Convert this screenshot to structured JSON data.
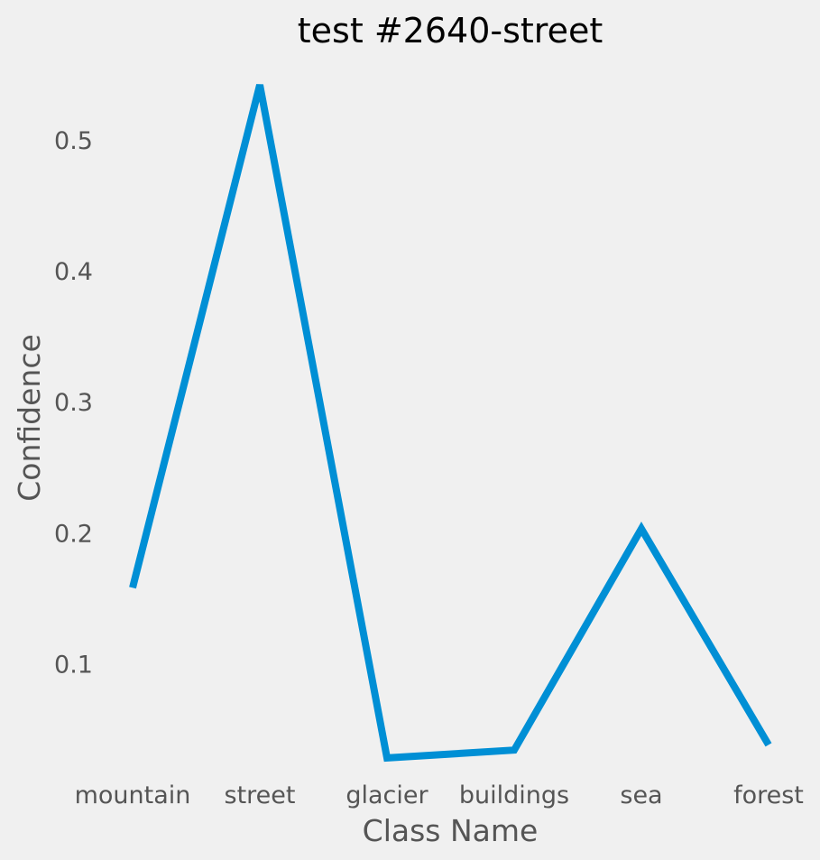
{
  "chart_data": {
    "type": "line",
    "title": "test #2640-street",
    "xlabel": "Class Name",
    "ylabel": "Confidence",
    "categories": [
      "mountain",
      "street",
      "glacier",
      "buildings",
      "sea",
      "forest"
    ],
    "series": [
      {
        "values": [
          0.158,
          0.542,
          0.028,
          0.034,
          0.203,
          0.038
        ],
        "color": "#008fd5"
      }
    ],
    "yticks": [
      0.1,
      0.2,
      0.3,
      0.4,
      0.5
    ],
    "ytick_labels": [
      "0.1",
      "0.2",
      "0.3",
      "0.4",
      "0.5"
    ],
    "ylim": [
      0.01,
      0.56
    ],
    "grid": false,
    "background": "#f0f0f0"
  }
}
